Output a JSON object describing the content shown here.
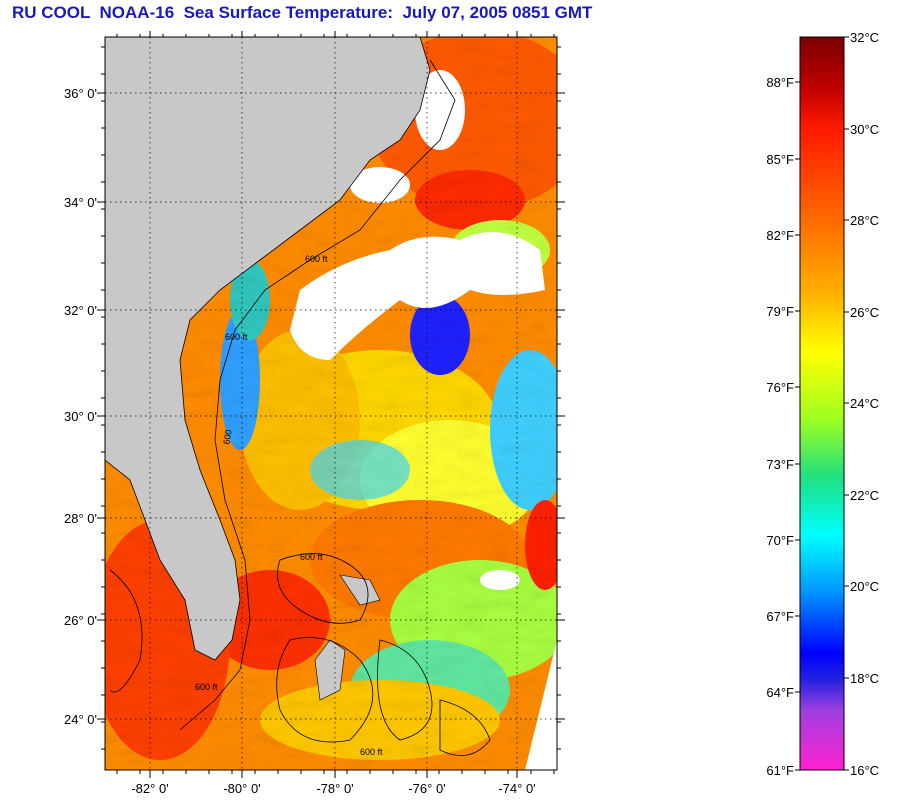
{
  "title": "RU COOL  NOAA-16  Sea Surface Temperature:  July 07, 2005 0851 GMT",
  "map": {
    "lat_labels": [
      "36° 0'",
      "34° 0'",
      "32° 0'",
      "30° 0'",
      "28° 0'",
      "26° 0'",
      "24° 0'"
    ],
    "lon_labels": [
      "-82° 0'",
      "-80° 0'",
      "-78° 0'",
      "-76° 0'",
      "-74° 0'"
    ],
    "contour_labels": [
      "600 ft",
      "600 ft",
      "600",
      "600 ft",
      "600 ft",
      "600 ft"
    ]
  },
  "colorbar": {
    "celsius_labels": [
      "32°C",
      "30°C",
      "28°C",
      "26°C",
      "24°C",
      "22°C",
      "20°C",
      "18°C",
      "16°C"
    ],
    "fahrenheit_labels": [
      "88°F",
      "85°F",
      "82°F",
      "79°F",
      "76°F",
      "73°F",
      "70°F",
      "67°F",
      "64°F",
      "61°F"
    ],
    "celsius_range": [
      16,
      32
    ]
  },
  "colors": {
    "title": "#1a1ab8",
    "land": "#c8c8c8",
    "cloud": "#ffffff"
  }
}
